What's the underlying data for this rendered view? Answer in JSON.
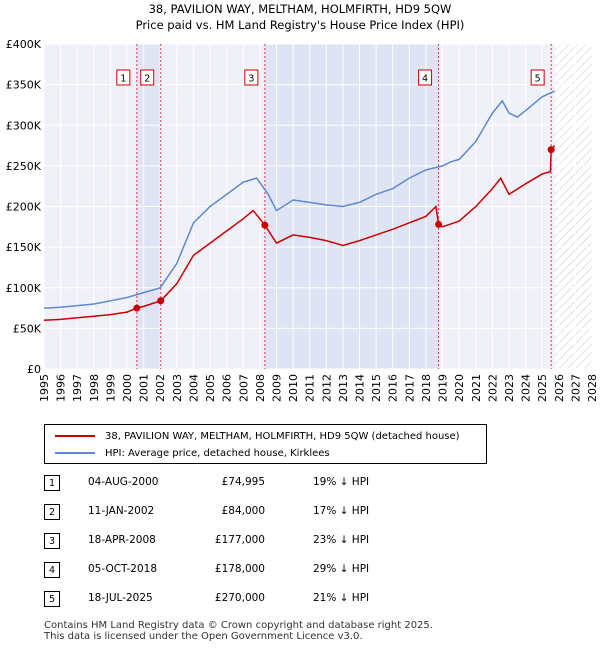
{
  "title_line1": "38, PAVILION WAY, MELTHAM, HOLMFIRTH, HD9 5QW",
  "title_line2": "Price paid vs. HM Land Registry's House Price Index (HPI)",
  "chart_data": {
    "type": "line",
    "xlim": [
      1995,
      2028
    ],
    "ylim": [
      0,
      400000
    ],
    "x_ticks": [
      1995,
      1996,
      1997,
      1998,
      1999,
      2000,
      2001,
      2002,
      2003,
      2004,
      2005,
      2006,
      2007,
      2008,
      2009,
      2010,
      2011,
      2012,
      2013,
      2014,
      2015,
      2016,
      2017,
      2018,
      2019,
      2020,
      2021,
      2022,
      2023,
      2024,
      2025,
      2026,
      2027,
      2028
    ],
    "y_ticks": [
      {
        "value": 0,
        "label": "£0"
      },
      {
        "value": 50000,
        "label": "£50K"
      },
      {
        "value": 100000,
        "label": "£100K"
      },
      {
        "value": 150000,
        "label": "£150K"
      },
      {
        "value": 200000,
        "label": "£200K"
      },
      {
        "value": 250000,
        "label": "£250K"
      },
      {
        "value": 300000,
        "label": "£300K"
      },
      {
        "value": 350000,
        "label": "£350K"
      },
      {
        "value": 400000,
        "label": "£400K"
      }
    ],
    "grid": true,
    "data_end": 2025.75,
    "shaded_ranges": [
      [
        2000.59,
        2002.03
      ],
      [
        2008.3,
        2018.76
      ]
    ],
    "series": [
      {
        "name": "38, PAVILION WAY, MELTHAM, HOLMFIRTH, HD9 5QW (detached house)",
        "color": "#cc0000",
        "x": [
          1995,
          1996,
          1997,
          1998,
          1999,
          2000,
          2000.59,
          2001,
          2002.03,
          2003,
          2004,
          2005,
          2006,
          2007,
          2007.6,
          2008.3,
          2009,
          2010,
          2011,
          2012,
          2013,
          2014,
          2015,
          2016,
          2017,
          2018,
          2018.6,
          2018.76,
          2019,
          2020,
          2021,
          2022,
          2022.5,
          2023,
          2024,
          2025,
          2025.5,
          2025.54,
          2025.75
        ],
        "y": [
          60000,
          61000,
          63000,
          65000,
          67000,
          70000,
          74995,
          77000,
          84000,
          105000,
          140000,
          155000,
          170000,
          185000,
          195000,
          177000,
          155000,
          165000,
          162000,
          158000,
          152000,
          158000,
          165000,
          172000,
          180000,
          188000,
          200000,
          178000,
          175000,
          182000,
          200000,
          222000,
          235000,
          215000,
          228000,
          240000,
          243000,
          270000,
          275000
        ]
      },
      {
        "name": "HPI: Average price, detached house, Kirklees",
        "color": "#5b8ad0",
        "x": [
          1995,
          1996,
          1997,
          1998,
          1999,
          2000,
          2001,
          2002,
          2003,
          2004,
          2005,
          2006,
          2007,
          2007.8,
          2008.5,
          2009,
          2010,
          2011,
          2012,
          2013,
          2014,
          2015,
          2016,
          2017,
          2018,
          2019,
          2019.5,
          2020,
          2021,
          2022,
          2022.6,
          2023,
          2023.5,
          2024,
          2025,
          2025.75
        ],
        "y": [
          75000,
          76000,
          78000,
          80000,
          84000,
          88000,
          94000,
          100000,
          130000,
          180000,
          200000,
          215000,
          230000,
          235000,
          215000,
          195000,
          208000,
          205000,
          202000,
          200000,
          205000,
          215000,
          222000,
          235000,
          245000,
          250000,
          255000,
          258000,
          280000,
          315000,
          330000,
          315000,
          310000,
          318000,
          335000,
          342000
        ]
      }
    ],
    "markers": [
      {
        "label": "1",
        "x": 2000.59,
        "y": 74995
      },
      {
        "label": "2",
        "x": 2002.03,
        "y": 84000
      },
      {
        "label": "3",
        "x": 2008.3,
        "y": 177000
      },
      {
        "label": "4",
        "x": 2018.76,
        "y": 178000
      },
      {
        "label": "5",
        "x": 2025.54,
        "y": 270000
      }
    ]
  },
  "legend": {
    "property_label": "38, PAVILION WAY, MELTHAM, HOLMFIRTH, HD9 5QW (detached house)",
    "hpi_label": "HPI: Average price, detached house, Kirklees",
    "property_color": "#cc0000",
    "hpi_color": "#5b8ad0"
  },
  "transactions": [
    {
      "num": "1",
      "date": "04-AUG-2000",
      "price": "£74,995",
      "hpi": "19% ↓ HPI"
    },
    {
      "num": "2",
      "date": "11-JAN-2002",
      "price": "£84,000",
      "hpi": "17% ↓ HPI"
    },
    {
      "num": "3",
      "date": "18-APR-2008",
      "price": "£177,000",
      "hpi": "23% ↓ HPI"
    },
    {
      "num": "4",
      "date": "05-OCT-2018",
      "price": "£178,000",
      "hpi": "29% ↓ HPI"
    },
    {
      "num": "5",
      "date": "18-JUL-2025",
      "price": "£270,000",
      "hpi": "21% ↓ HPI"
    }
  ],
  "footer_line1": "Contains HM Land Registry data © Crown copyright and database right 2025.",
  "footer_line2": "This data is licensed under the Open Government Licence v3.0."
}
